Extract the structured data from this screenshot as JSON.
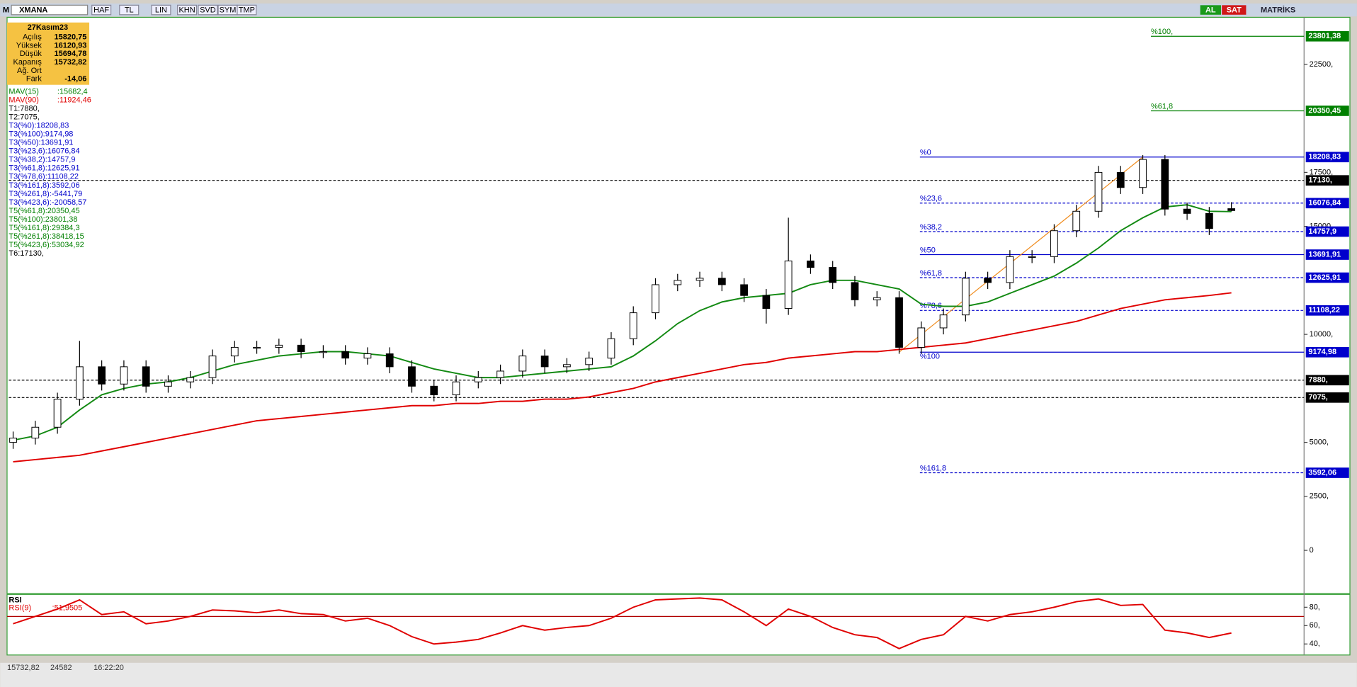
{
  "toolbar": {
    "logo": "M",
    "symbol": "XMANA",
    "items": [
      "HAF",
      "TL",
      "LIN",
      "KHN",
      "SVD",
      "SYM",
      "TMP"
    ],
    "buy": "AL",
    "sell": "SAT",
    "brand": "MATRİKS"
  },
  "info": {
    "date": "27Kasım23",
    "rows": [
      [
        "Açılış",
        "15820,75"
      ],
      [
        "Yüksek",
        "16120,93"
      ],
      [
        "Düşük",
        "15694,78"
      ],
      [
        "Kapanış",
        "15732,82"
      ],
      [
        "Ağ. Ort"
      ],
      [
        "Fark",
        "-14,06"
      ]
    ]
  },
  "legend_lines": [
    {
      "text": "MAV(15)",
      "value": ":15682,4",
      "color": "#008000"
    },
    {
      "text": "MAV(90)",
      "value": ":11924,46",
      "color": "#e00000"
    },
    {
      "text": "T1:7880,",
      "color": "#000000"
    },
    {
      "text": "T2:7075,",
      "color": "#000000"
    },
    {
      "text": "T3(%0):18208,83",
      "color": "#0000cc"
    },
    {
      "text": "T3(%100):9174,98",
      "color": "#0000cc"
    },
    {
      "text": "T3(%50):13691,91",
      "color": "#0000cc"
    },
    {
      "text": "T3(%23,6):16076,84",
      "color": "#0000cc"
    },
    {
      "text": "T3(%38,2):14757,9",
      "color": "#0000cc"
    },
    {
      "text": "T3(%61,8):12625,91",
      "color": "#0000cc"
    },
    {
      "text": "T3(%78,6):11108,22",
      "color": "#0000cc"
    },
    {
      "text": "T3(%161,8):3592,06",
      "color": "#0000cc"
    },
    {
      "text": "T3(%261,8):-5441,79",
      "color": "#0000cc"
    },
    {
      "text": "T3(%423,6):-20058,57",
      "color": "#0000cc"
    },
    {
      "text": "T5(%61,8):20350,45",
      "color": "#008000"
    },
    {
      "text": "T5(%100):23801,38",
      "color": "#008000"
    },
    {
      "text": "T5(%161,8):29384,3",
      "color": "#008000"
    },
    {
      "text": "T5(%261,8):38418,15",
      "color": "#008000"
    },
    {
      "text": "T5(%423,6):53034,92",
      "color": "#008000"
    },
    {
      "text": "T6:17130,",
      "color": "#000000"
    }
  ],
  "status": [
    "15732,82",
    "24582",
    "16:22:20"
  ],
  "chart_data": [
    {
      "type": "candlestick",
      "ylim": [
        -2000,
        24680
      ],
      "yticks": [
        0,
        {
          "value": 2500,
          "label": "2500,"
        },
        {
          "value": 5000,
          "label": "5000,"
        },
        {
          "value": 10000,
          "label": "10000,"
        },
        {
          "value": 15000,
          "label": "15000,"
        },
        {
          "value": 17500,
          "label": "17500,"
        },
        {
          "value": 22500,
          "label": "22500,"
        }
      ],
      "open": [
        5000,
        5200,
        5700,
        7000,
        8500,
        7700,
        8500,
        7600,
        7800,
        8000,
        9000,
        9400,
        9400,
        9500,
        9200,
        9200,
        8900,
        9100,
        8500,
        7600,
        7200,
        7800,
        8000,
        8300,
        9000,
        8500,
        8600,
        8900,
        9800,
        11000,
        12300,
        12500,
        12600,
        12300,
        11800,
        11200,
        13400,
        13100,
        12400,
        11600,
        11700,
        9400,
        10300,
        10900,
        12600,
        12400,
        13600,
        13600,
        14800,
        15700,
        17500,
        16800,
        18100,
        15800,
        15600,
        15820.75
      ],
      "high": [
        5500,
        6000,
        7300,
        9700,
        8800,
        8800,
        8800,
        8100,
        8300,
        9300,
        9700,
        9700,
        9800,
        9800,
        9500,
        9500,
        9400,
        9400,
        8800,
        7900,
        8100,
        8300,
        8600,
        9300,
        9300,
        8900,
        9200,
        10100,
        11300,
        12600,
        12800,
        12900,
        12900,
        12600,
        12100,
        15400,
        13700,
        13400,
        12700,
        12000,
        12000,
        10600,
        11200,
        12900,
        12900,
        13900,
        13900,
        15100,
        16000,
        17800,
        17800,
        18300,
        18300,
        16100,
        15900,
        16120.93
      ],
      "low": [
        4700,
        4900,
        5400,
        6700,
        7400,
        7400,
        7300,
        7300,
        7500,
        7700,
        8700,
        9100,
        9100,
        8900,
        8900,
        8600,
        8600,
        8200,
        7300,
        6900,
        6900,
        7500,
        7700,
        8000,
        8200,
        8200,
        8300,
        8600,
        9500,
        10700,
        12000,
        12200,
        12000,
        11500,
        10500,
        10900,
        12800,
        12100,
        11300,
        11300,
        9100,
        9100,
        10000,
        10600,
        12100,
        12100,
        13300,
        13300,
        14500,
        15400,
        16500,
        16500,
        15500,
        15300,
        14600,
        15694.78
      ],
      "close": [
        5200,
        5700,
        7000,
        8500,
        7700,
        8500,
        7600,
        7800,
        8000,
        9000,
        9400,
        9400,
        9500,
        9200,
        9200,
        8900,
        9100,
        8500,
        7600,
        7200,
        7800,
        8000,
        8300,
        9000,
        8500,
        8600,
        8900,
        9800,
        11000,
        12300,
        12500,
        12600,
        12300,
        11800,
        11200,
        13400,
        13100,
        12400,
        11600,
        11700,
        9400,
        10300,
        10900,
        12600,
        12400,
        13600,
        13600,
        14800,
        15700,
        17500,
        16800,
        18100,
        15800,
        15600,
        14900,
        15732.82
      ],
      "series": [
        {
          "name": "MAV(15)",
          "color": "#138a13",
          "values": [
            5100,
            5300,
            5700,
            6500,
            7200,
            7500,
            7700,
            7800,
            8000,
            8300,
            8600,
            8800,
            9000,
            9100,
            9200,
            9200,
            9100,
            9000,
            8700,
            8400,
            8200,
            8000,
            8000,
            8100,
            8200,
            8300,
            8400,
            8500,
            9000,
            9700,
            10500,
            11100,
            11500,
            11700,
            11800,
            11900,
            12300,
            12500,
            12500,
            12300,
            12100,
            11400,
            11300,
            11300,
            11500,
            11900,
            12300,
            12700,
            13300,
            14000,
            14800,
            15400,
            15900,
            16000,
            15700,
            15682.4
          ]
        },
        {
          "name": "MAV(90)",
          "color": "#e00000",
          "values": [
            4100,
            4200,
            4300,
            4400,
            4600,
            4800,
            5000,
            5200,
            5400,
            5600,
            5800,
            6000,
            6100,
            6200,
            6300,
            6400,
            6500,
            6600,
            6700,
            6700,
            6800,
            6800,
            6900,
            6900,
            7000,
            7000,
            7100,
            7300,
            7500,
            7800,
            8000,
            8200,
            8400,
            8600,
            8700,
            8900,
            9000,
            9100,
            9200,
            9200,
            9300,
            9400,
            9500,
            9600,
            9800,
            10000,
            10200,
            10400,
            10600,
            10900,
            11200,
            11400,
            11600,
            11700,
            11800,
            11924.46
          ]
        }
      ],
      "fib_levels": {
        "color": "#0000cc",
        "levels": [
          {
            "name": "%0",
            "value": 18208.83,
            "label": "18208,83",
            "dashed": false
          },
          {
            "name": "%23,6",
            "value": 16076.84,
            "label": "16076,84",
            "dashed": true
          },
          {
            "name": "%38,2",
            "value": 14757.9,
            "label": "14757,9",
            "dashed": true
          },
          {
            "name": "%50",
            "value": 13691.91,
            "label": "13691,91",
            "dashed": false
          },
          {
            "name": "%61,8",
            "value": 12625.91,
            "label": "12625,91",
            "dashed": true
          },
          {
            "name": "%78,6",
            "value": 11108.22,
            "label": "11108,22",
            "dashed": true
          },
          {
            "name": "%100",
            "value": 9174.98,
            "label": "9174,98",
            "dashed": false
          },
          {
            "name": "%161,8",
            "value": 3592.06,
            "label": "3592,06",
            "dashed": true
          }
        ]
      },
      "ext_levels": {
        "color": "#008000",
        "levels": [
          {
            "name": "%100,",
            "value": 23801.38,
            "label": "23801,38"
          },
          {
            "name": "%61,8",
            "value": 20350.45,
            "label": "20350,45"
          }
        ]
      },
      "t_levels": {
        "color": "#000000",
        "levels": [
          {
            "value": 17130,
            "label": "17130,"
          },
          {
            "value": 7880,
            "label": "7880,"
          },
          {
            "value": 7075,
            "label": "7075,"
          }
        ]
      },
      "trend_color": "#f08c1e"
    },
    {
      "type": "line",
      "title": "RSI",
      "ylim": [
        28,
        93
      ],
      "yticks": [
        {
          "value": 40,
          "label": "40,"
        },
        {
          "value": 60,
          "label": "60,"
        },
        {
          "value": 80,
          "label": "80,"
        }
      ],
      "hline": 70,
      "series": [
        {
          "name": "RSI(9)",
          "value_label": ":51,9505",
          "color": "#e00000",
          "values": [
            62,
            70,
            78,
            88,
            72,
            75,
            62,
            65,
            70,
            77,
            76,
            74,
            77,
            73,
            72,
            65,
            68,
            60,
            48,
            40,
            42,
            45,
            52,
            60,
            55,
            58,
            60,
            68,
            80,
            88,
            89,
            90,
            88,
            75,
            60,
            78,
            70,
            58,
            50,
            47,
            35,
            45,
            50,
            70,
            65,
            72,
            75,
            80,
            86,
            89,
            82,
            83,
            55,
            52,
            47,
            51.95
          ]
        }
      ]
    }
  ]
}
